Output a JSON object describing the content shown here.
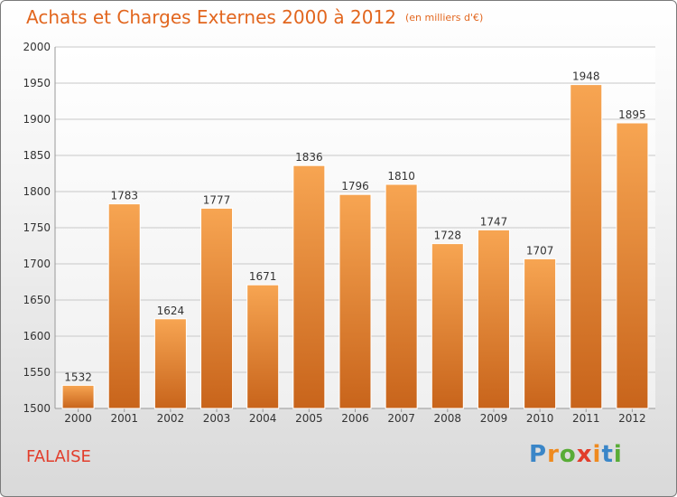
{
  "header": {
    "title": "Achats et Charges Externes 2000 à 2012",
    "subtitle": "(en milliers d'€)"
  },
  "footer": {
    "location": "FALAISE",
    "brand_letters": [
      {
        "ch": "P",
        "color": "#3a86c8"
      },
      {
        "ch": "r",
        "color": "#ef8a1e"
      },
      {
        "ch": "o",
        "color": "#58ac36"
      },
      {
        "ch": "x",
        "color": "#e23d2b"
      },
      {
        "ch": "i",
        "color": "#ef8a1e"
      },
      {
        "ch": "t",
        "color": "#3a86c8"
      },
      {
        "ch": "i",
        "color": "#58ac36"
      }
    ]
  },
  "colors": {
    "bar_top": "#f7a552",
    "bar_bottom": "#c8641b",
    "grid": "#c8c8c8",
    "title": "#e2661e",
    "location": "#e23d2b"
  },
  "chart_data": {
    "type": "bar",
    "title": "Achats et Charges Externes 2000 à 2012",
    "subtitle": "(en milliers d'€)",
    "categories": [
      "2000",
      "2001",
      "2002",
      "2003",
      "2004",
      "2005",
      "2006",
      "2007",
      "2008",
      "2009",
      "2010",
      "2011",
      "2012"
    ],
    "values": [
      1532,
      1783,
      1624,
      1777,
      1671,
      1836,
      1796,
      1810,
      1728,
      1747,
      1707,
      1948,
      1895
    ],
    "ylim": [
      1500,
      2000
    ],
    "yticks": [
      1500,
      1550,
      1600,
      1650,
      1700,
      1750,
      1800,
      1850,
      1900,
      1950,
      2000
    ],
    "grid": true,
    "data_labels": true
  }
}
